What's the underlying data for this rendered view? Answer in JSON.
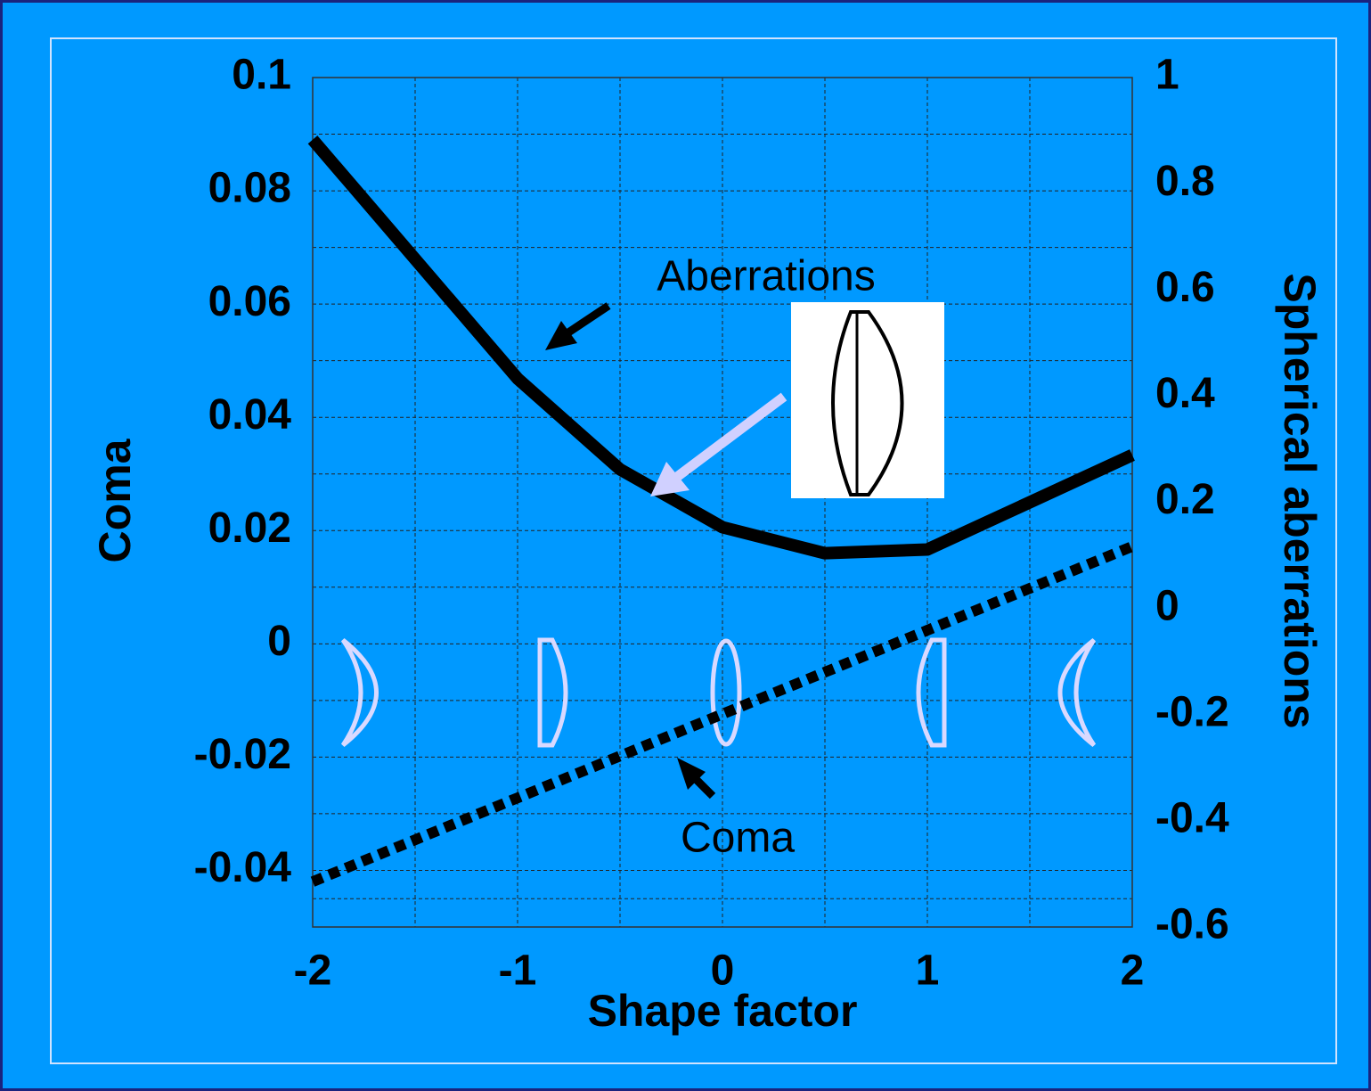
{
  "chart_data": {
    "type": "line",
    "xlabel": "Shape factor",
    "ylabel": "Coma",
    "y2label": "Spherical aberrations",
    "annotations": [
      "Aberrations",
      "Coma"
    ],
    "xlim": [
      -2,
      2
    ],
    "xticks": [
      -2,
      -1,
      0,
      1,
      2
    ],
    "ylim": [
      -0.05,
      0.1
    ],
    "yticks": [
      -0.04,
      -0.02,
      0,
      0.02,
      0.04,
      0.06,
      0.08,
      0.1
    ],
    "y2lim": [
      -0.6,
      1
    ],
    "y2ticks": [
      -0.6,
      -0.4,
      -0.2,
      0,
      0.2,
      0.4,
      0.6,
      0.8,
      1
    ],
    "grid": true,
    "series": [
      {
        "name": "Aberrations",
        "color": "#000000",
        "axis": "y2",
        "style": "solid",
        "x": [
          -2,
          -1,
          -0.5,
          0,
          0.5,
          1,
          2
        ],
        "values": [
          0.883,
          0.433,
          0.262,
          0.153,
          0.104,
          0.111,
          0.289
        ]
      },
      {
        "name": "Coma",
        "color": "#000000",
        "axis": "y",
        "style": "dotted",
        "x": [
          -2,
          -1.5,
          -1,
          -0.5,
          0,
          0.5,
          1,
          1.5,
          2
        ],
        "values": [
          -0.042,
          -0.0346,
          -0.0272,
          -0.0198,
          -0.0124,
          -0.005,
          0.0024,
          0.0098,
          0.0172
        ]
      }
    ]
  }
}
